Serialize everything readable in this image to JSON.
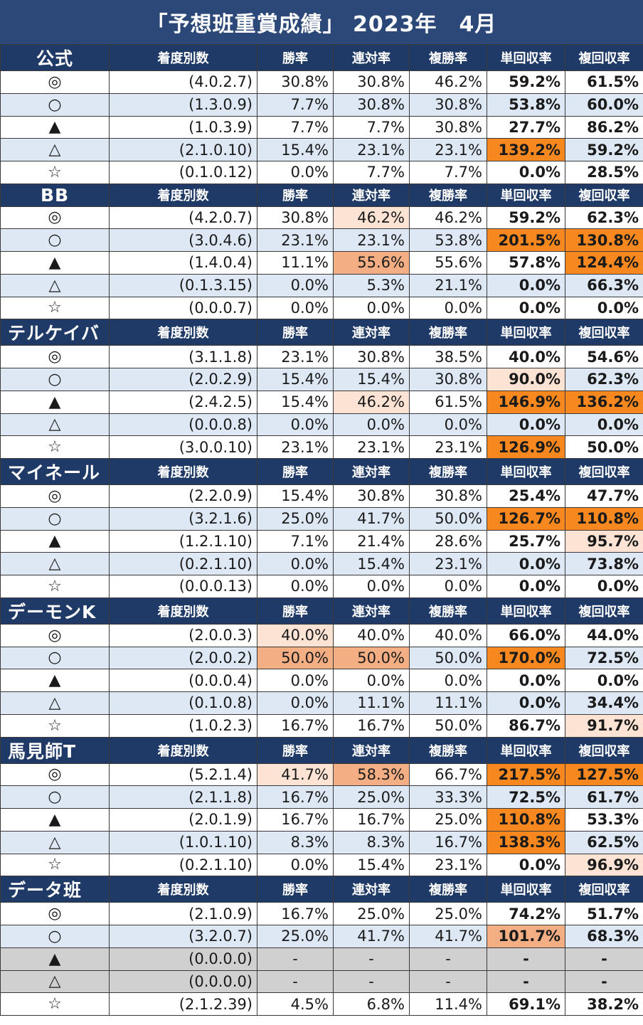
{
  "title": "「予想班重賞成績」 2023年　4月",
  "columns": [
    "着度別数",
    "勝率",
    "連対率",
    "複勝率",
    "単回収率",
    "複回収率"
  ],
  "highlight_colors": {
    "light": "#fce3d4",
    "medium": "#f4ae84",
    "dark": "#f7881f"
  },
  "groups": [
    {
      "name": "公式",
      "rows": [
        {
          "mark": "◎",
          "counts": "(4.0.2.7)",
          "win": "30.8%",
          "place2": "30.8%",
          "place3": "46.2%",
          "win_return": "59.2%",
          "place_return": "61.5%"
        },
        {
          "mark": "○",
          "counts": "(1.3.0.9)",
          "win": "7.7%",
          "place2": "30.8%",
          "place3": "30.8%",
          "win_return": "53.8%",
          "place_return": "60.0%"
        },
        {
          "mark": "▲",
          "counts": "(1.0.3.9)",
          "win": "7.7%",
          "place2": "7.7%",
          "place3": "30.8%",
          "win_return": "27.7%",
          "place_return": "86.2%"
        },
        {
          "mark": "△",
          "counts": "(2.1.0.10)",
          "win": "15.4%",
          "place2": "23.1%",
          "place3": "23.1%",
          "win_return": "139.2%",
          "place_return": "59.2%",
          "hl": {
            "win_return": "dark"
          }
        },
        {
          "mark": "☆",
          "counts": "(0.1.0.12)",
          "win": "0.0%",
          "place2": "7.7%",
          "place3": "7.7%",
          "win_return": "0.0%",
          "place_return": "28.5%"
        }
      ]
    },
    {
      "name": "BB",
      "rows": [
        {
          "mark": "◎",
          "counts": "(4.2.0.7)",
          "win": "30.8%",
          "place2": "46.2%",
          "place3": "46.2%",
          "win_return": "59.2%",
          "place_return": "62.3%",
          "hl": {
            "place2": "light"
          }
        },
        {
          "mark": "○",
          "counts": "(3.0.4.6)",
          "win": "23.1%",
          "place2": "23.1%",
          "place3": "53.8%",
          "win_return": "201.5%",
          "place_return": "130.8%",
          "hl": {
            "win_return": "dark",
            "place_return": "dark"
          }
        },
        {
          "mark": "▲",
          "counts": "(1.4.0.4)",
          "win": "11.1%",
          "place2": "55.6%",
          "place3": "55.6%",
          "win_return": "57.8%",
          "place_return": "124.4%",
          "hl": {
            "place2": "medium",
            "place_return": "dark"
          }
        },
        {
          "mark": "△",
          "counts": "(0.1.3.15)",
          "win": "0.0%",
          "place2": "5.3%",
          "place3": "21.1%",
          "win_return": "0.0%",
          "place_return": "66.3%"
        },
        {
          "mark": "☆",
          "counts": "(0.0.0.7)",
          "win": "0.0%",
          "place2": "0.0%",
          "place3": "0.0%",
          "win_return": "0.0%",
          "place_return": "0.0%"
        }
      ]
    },
    {
      "name": "テルケイバ",
      "rows": [
        {
          "mark": "◎",
          "counts": "(3.1.1.8)",
          "win": "23.1%",
          "place2": "30.8%",
          "place3": "38.5%",
          "win_return": "40.0%",
          "place_return": "54.6%"
        },
        {
          "mark": "○",
          "counts": "(2.0.2.9)",
          "win": "15.4%",
          "place2": "15.4%",
          "place3": "30.8%",
          "win_return": "90.0%",
          "place_return": "62.3%",
          "hl": {
            "win_return": "light"
          }
        },
        {
          "mark": "▲",
          "counts": "(2.4.2.5)",
          "win": "15.4%",
          "place2": "46.2%",
          "place3": "61.5%",
          "win_return": "146.9%",
          "place_return": "136.2%",
          "hl": {
            "place2": "light",
            "win_return": "dark",
            "place_return": "dark"
          }
        },
        {
          "mark": "△",
          "counts": "(0.0.0.8)",
          "win": "0.0%",
          "place2": "0.0%",
          "place3": "0.0%",
          "win_return": "0.0%",
          "place_return": "0.0%"
        },
        {
          "mark": "☆",
          "counts": "(3.0.0.10)",
          "win": "23.1%",
          "place2": "23.1%",
          "place3": "23.1%",
          "win_return": "126.9%",
          "place_return": "50.0%",
          "hl": {
            "win_return": "dark"
          }
        }
      ]
    },
    {
      "name": "マイネール",
      "rows": [
        {
          "mark": "◎",
          "counts": "(2.2.0.9)",
          "win": "15.4%",
          "place2": "30.8%",
          "place3": "30.8%",
          "win_return": "25.4%",
          "place_return": "47.7%"
        },
        {
          "mark": "○",
          "counts": "(3.2.1.6)",
          "win": "25.0%",
          "place2": "41.7%",
          "place3": "50.0%",
          "win_return": "126.7%",
          "place_return": "110.8%",
          "hl": {
            "win_return": "dark",
            "place_return": "dark"
          }
        },
        {
          "mark": "▲",
          "counts": "(1.2.1.10)",
          "win": "7.1%",
          "place2": "21.4%",
          "place3": "28.6%",
          "win_return": "25.7%",
          "place_return": "95.7%",
          "hl": {
            "place_return": "light"
          }
        },
        {
          "mark": "△",
          "counts": "(0.2.1.10)",
          "win": "0.0%",
          "place2": "15.4%",
          "place3": "23.1%",
          "win_return": "0.0%",
          "place_return": "73.8%"
        },
        {
          "mark": "☆",
          "counts": "(0.0.0.13)",
          "win": "0.0%",
          "place2": "0.0%",
          "place3": "0.0%",
          "win_return": "0.0%",
          "place_return": "0.0%"
        }
      ]
    },
    {
      "name": "デーモンK",
      "rows": [
        {
          "mark": "◎",
          "counts": "(2.0.0.3)",
          "win": "40.0%",
          "place2": "40.0%",
          "place3": "40.0%",
          "win_return": "66.0%",
          "place_return": "44.0%",
          "hl": {
            "win": "light"
          }
        },
        {
          "mark": "○",
          "counts": "(2.0.0.2)",
          "win": "50.0%",
          "place2": "50.0%",
          "place3": "50.0%",
          "win_return": "170.0%",
          "place_return": "72.5%",
          "hl": {
            "win": "medium",
            "place2": "medium",
            "win_return": "dark"
          }
        },
        {
          "mark": "▲",
          "counts": "(0.0.0.4)",
          "win": "0.0%",
          "place2": "0.0%",
          "place3": "0.0%",
          "win_return": "0.0%",
          "place_return": "0.0%"
        },
        {
          "mark": "△",
          "counts": "(0.1.0.8)",
          "win": "0.0%",
          "place2": "11.1%",
          "place3": "11.1%",
          "win_return": "0.0%",
          "place_return": "34.4%"
        },
        {
          "mark": "☆",
          "counts": "(1.0.2.3)",
          "win": "16.7%",
          "place2": "16.7%",
          "place3": "50.0%",
          "win_return": "86.7%",
          "place_return": "91.7%",
          "hl": {
            "place_return": "light"
          }
        }
      ]
    },
    {
      "name": "馬見師T",
      "rows": [
        {
          "mark": "◎",
          "counts": "(5.2.1.4)",
          "win": "41.7%",
          "place2": "58.3%",
          "place3": "66.7%",
          "win_return": "217.5%",
          "place_return": "127.5%",
          "hl": {
            "win": "light",
            "place2": "medium",
            "win_return": "dark",
            "place_return": "dark"
          }
        },
        {
          "mark": "○",
          "counts": "(2.1.1.8)",
          "win": "16.7%",
          "place2": "25.0%",
          "place3": "33.3%",
          "win_return": "72.5%",
          "place_return": "61.7%"
        },
        {
          "mark": "▲",
          "counts": "(2.0.1.9)",
          "win": "16.7%",
          "place2": "16.7%",
          "place3": "25.0%",
          "win_return": "110.8%",
          "place_return": "53.3%",
          "hl": {
            "win_return": "dark"
          }
        },
        {
          "mark": "△",
          "counts": "(1.0.1.10)",
          "win": "8.3%",
          "place2": "8.3%",
          "place3": "16.7%",
          "win_return": "138.3%",
          "place_return": "62.5%",
          "hl": {
            "win_return": "dark"
          }
        },
        {
          "mark": "☆",
          "counts": "(0.2.1.10)",
          "win": "0.0%",
          "place2": "15.4%",
          "place3": "23.1%",
          "win_return": "0.0%",
          "place_return": "96.9%",
          "hl": {
            "place_return": "light"
          }
        }
      ]
    },
    {
      "name": "データ班",
      "rows": [
        {
          "mark": "◎",
          "counts": "(2.1.0.9)",
          "win": "16.7%",
          "place2": "25.0%",
          "place3": "25.0%",
          "win_return": "74.2%",
          "place_return": "51.7%"
        },
        {
          "mark": "○",
          "counts": "(3.2.0.7)",
          "win": "25.0%",
          "place2": "41.7%",
          "place3": "41.7%",
          "win_return": "101.7%",
          "place_return": "68.3%",
          "hl": {
            "win_return": "medium"
          }
        },
        {
          "mark": "▲",
          "counts": "(0.0.0.0)",
          "win": "-",
          "place2": "-",
          "place3": "-",
          "win_return": "-",
          "place_return": "-",
          "na": true
        },
        {
          "mark": "△",
          "counts": "(0.0.0.0)",
          "win": "-",
          "place2": "-",
          "place3": "-",
          "win_return": "-",
          "place_return": "-",
          "na": true
        },
        {
          "mark": "☆",
          "counts": "(2.1.2.39)",
          "win": "4.5%",
          "place2": "6.8%",
          "place3": "11.4%",
          "win_return": "69.1%",
          "place_return": "38.2%"
        }
      ]
    }
  ]
}
